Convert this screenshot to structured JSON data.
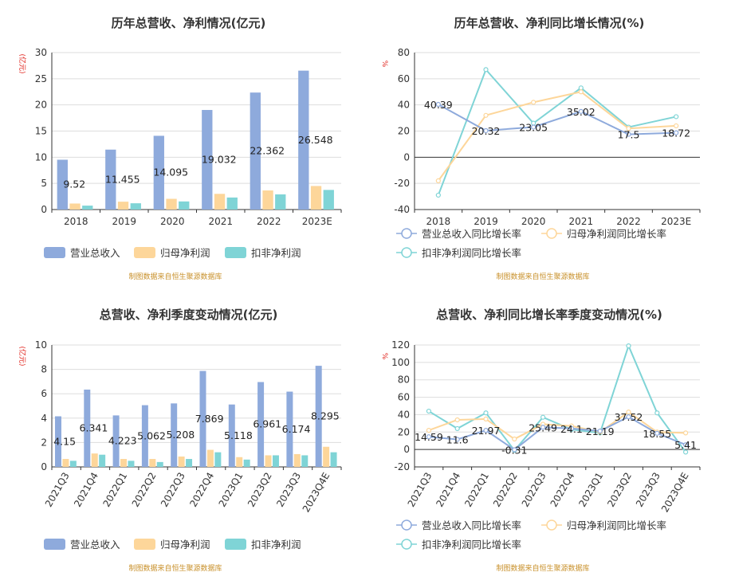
{
  "colors": {
    "revenue": "#8eaadc",
    "net_profit": "#fdd69a",
    "deducted_profit": "#7fd4d6",
    "source_text": "#c8902a",
    "unit_text": "#e0211a"
  },
  "source_note": "制图数据来自恒生聚源数据库",
  "chart_data": [
    {
      "type": "bar",
      "title": "历年总营收、净利情况(亿元)",
      "unit_label": "(亿元)",
      "categories": [
        "2018",
        "2019",
        "2020",
        "2021",
        "2022",
        "2023E"
      ],
      "ylim": [
        0,
        30
      ],
      "yticks": [
        0,
        5,
        10,
        15,
        20,
        25,
        30
      ],
      "grid": true,
      "legend_position": "bottom",
      "series": [
        {
          "name": "营业总收入",
          "values": [
            9.52,
            11.455,
            14.095,
            19.032,
            22.362,
            26.548
          ],
          "labels": [
            "9.52",
            "11.455",
            "14.095",
            "19.032",
            "22.362",
            "26.548"
          ]
        },
        {
          "name": "归母净利润",
          "values": [
            1.15,
            1.5,
            2.05,
            3.0,
            3.65,
            4.5
          ]
        },
        {
          "name": "扣非净利润",
          "values": [
            0.75,
            1.2,
            1.55,
            2.3,
            2.9,
            3.75
          ]
        }
      ]
    },
    {
      "type": "line",
      "title": "历年总营收、净利同比增长情况(%)",
      "unit_label": "%",
      "categories": [
        "2018",
        "2019",
        "2020",
        "2021",
        "2022",
        "2023E"
      ],
      "ylim": [
        -40,
        80
      ],
      "yticks": [
        -40,
        -20,
        0,
        20,
        40,
        60,
        80
      ],
      "grid": true,
      "legend_position": "bottom",
      "series": [
        {
          "name": "营业总收入同比增长率",
          "values": [
            40.39,
            20.32,
            23.05,
            35.02,
            17.5,
            18.72
          ],
          "labels": [
            "40.39",
            "20.32",
            "23.05",
            "35.02",
            "17.5",
            "18.72"
          ]
        },
        {
          "name": "归母净利润同比增长率",
          "values": [
            -18,
            32,
            42,
            50,
            22,
            24
          ]
        },
        {
          "name": "扣非净利润同比增长率",
          "values": [
            -29,
            67,
            26,
            53,
            23,
            31
          ]
        }
      ]
    },
    {
      "type": "bar",
      "title": "总营收、净利季度变动情况(亿元)",
      "unit_label": "(亿元)",
      "categories": [
        "2021Q3",
        "2021Q4",
        "2022Q1",
        "2022Q2",
        "2022Q3",
        "2022Q4",
        "2023Q1",
        "2023Q2",
        "2023Q3",
        "2023Q4E"
      ],
      "ylim": [
        0,
        10
      ],
      "yticks": [
        0,
        2,
        4,
        6,
        8,
        10
      ],
      "grid": true,
      "legend_position": "bottom",
      "series": [
        {
          "name": "营业总收入",
          "values": [
            4.15,
            6.341,
            4.223,
            5.062,
            5.208,
            7.869,
            5.118,
            6.961,
            6.174,
            8.295
          ],
          "labels": [
            "4.15",
            "6.341",
            "4.223",
            "5.062",
            "5.208",
            "7.869",
            "5.118",
            "6.961",
            "6.174",
            "8.295"
          ]
        },
        {
          "name": "归母净利润",
          "values": [
            0.65,
            1.1,
            0.65,
            0.65,
            0.85,
            1.4,
            0.8,
            0.95,
            1.05,
            1.65
          ]
        },
        {
          "name": "扣非净利润",
          "values": [
            0.5,
            1.0,
            0.5,
            0.4,
            0.65,
            1.2,
            0.6,
            0.95,
            0.95,
            1.2
          ]
        }
      ]
    },
    {
      "type": "line",
      "title": "总营收、净利同比增长率季度变动情况(%)",
      "unit_label": "%",
      "categories": [
        "2021Q3",
        "2021Q4",
        "2022Q1",
        "2022Q2",
        "2022Q3",
        "2022Q4",
        "2023Q1",
        "2023Q2",
        "2023Q3",
        "2023Q4E"
      ],
      "ylim": [
        -20,
        120
      ],
      "yticks": [
        -20,
        0,
        20,
        40,
        60,
        80,
        100,
        120
      ],
      "grid": true,
      "legend_position": "bottom",
      "series": [
        {
          "name": "营业总收入同比增长率",
          "values": [
            14.59,
            11.6,
            21.97,
            -0.31,
            25.49,
            24.1,
            21.19,
            37.52,
            18.55,
            5.41
          ],
          "labels": [
            "14.59",
            "11.6",
            "21.97",
            "-0.31",
            "25.49",
            "24.1",
            "21.19",
            "37.52",
            "18.55",
            "5.41"
          ]
        },
        {
          "name": "归母净利润同比增长率",
          "values": [
            22,
            34,
            35,
            12,
            29,
            27,
            20,
            43,
            20,
            19
          ]
        },
        {
          "name": "扣非净利润同比增长率",
          "values": [
            44,
            24,
            42,
            -1,
            37,
            23,
            19,
            119,
            42,
            -3
          ]
        }
      ]
    }
  ]
}
